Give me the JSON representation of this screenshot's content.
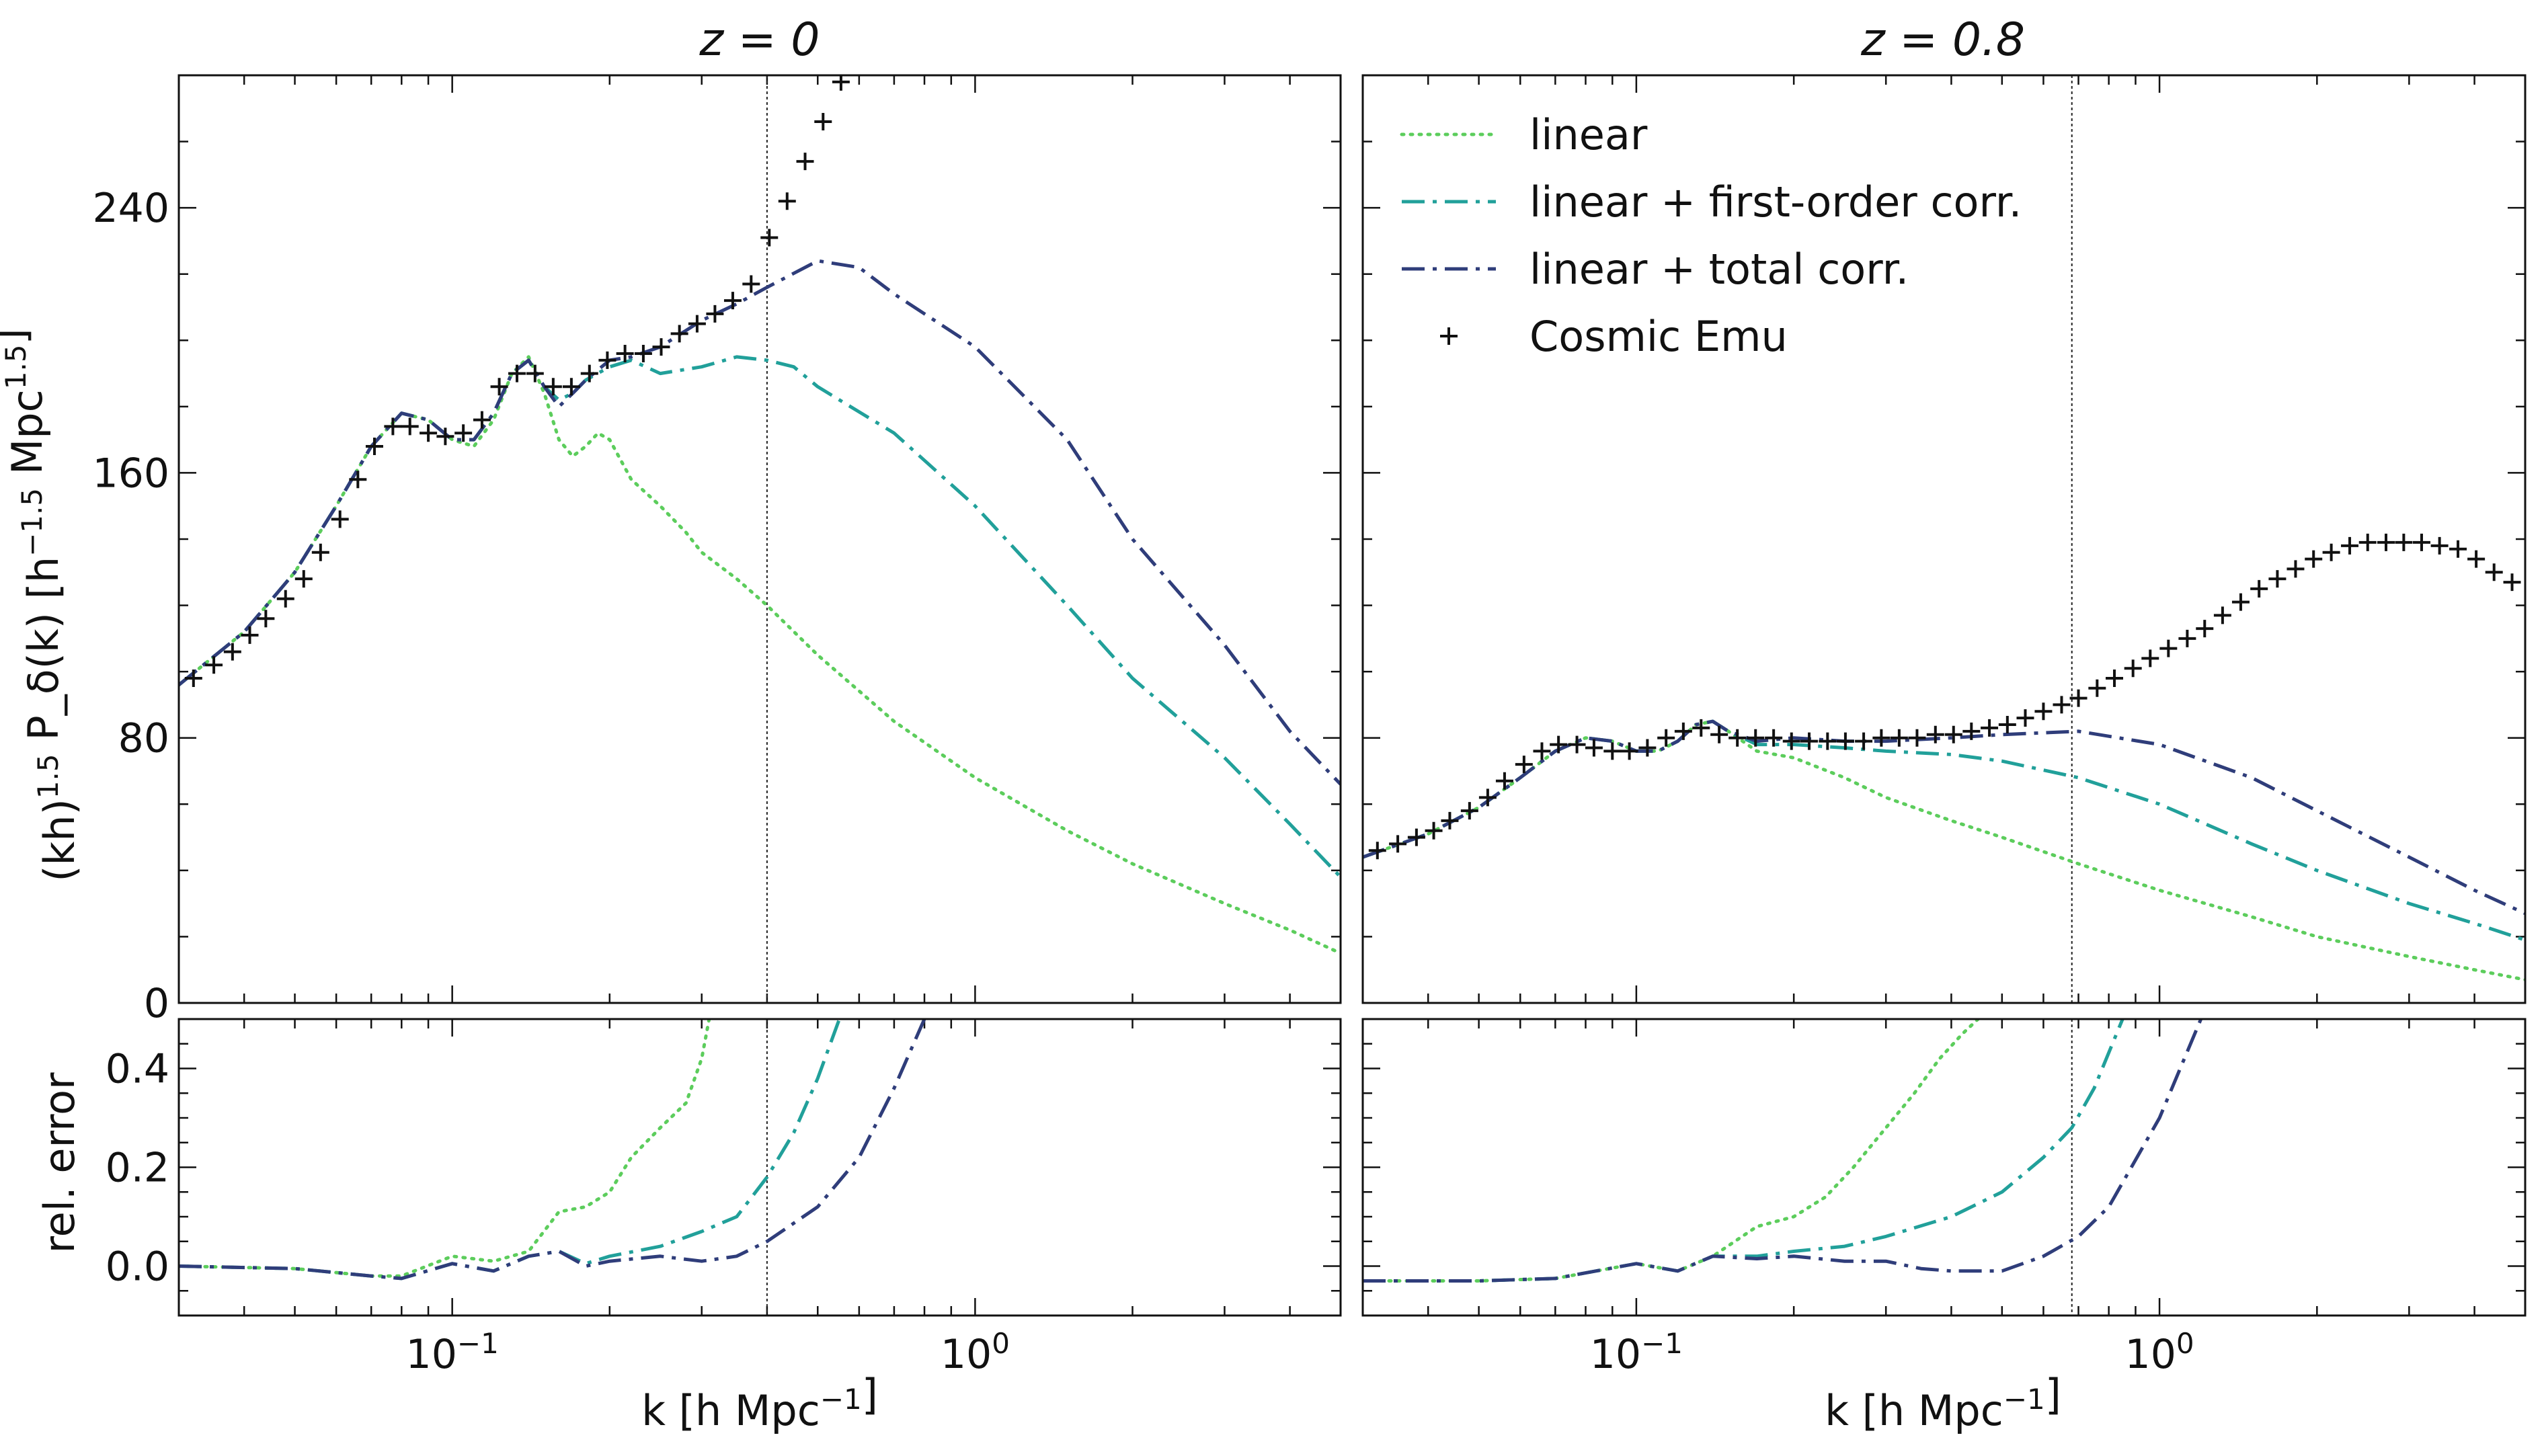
{
  "figure": {
    "ylabel_top": "(kh)^1.5 P_δ(k) [h^−1.5 Mpc^1.5]",
    "ylabel_bottom": "rel. error",
    "xlabel": "k [h Mpc^−1]",
    "legend_position": "top-left of right panel"
  },
  "chart_data": [
    {
      "type": "line",
      "title": "z = 0",
      "xscale": "log",
      "xlim": [
        0.03,
        5.0
      ],
      "ylim": [
        0,
        280
      ],
      "yticks": [
        0,
        80,
        160,
        240
      ],
      "xticks": [
        0.1,
        1.0
      ],
      "xtick_labels": [
        "10^−1",
        "10^0"
      ],
      "vline_x": 0.4,
      "series": [
        {
          "name": "linear",
          "style": "dotted",
          "color": "#5ccd5c",
          "x": [
            0.03,
            0.04,
            0.05,
            0.06,
            0.07,
            0.08,
            0.09,
            0.1,
            0.11,
            0.12,
            0.13,
            0.14,
            0.15,
            0.16,
            0.17,
            0.18,
            0.19,
            0.2,
            0.22,
            0.25,
            0.28,
            0.3,
            0.35,
            0.4,
            0.5,
            0.7,
            1.0,
            1.5,
            2.0,
            3.0,
            4.0,
            5.0
          ],
          "y": [
            96,
            112,
            130,
            150,
            168,
            178,
            176,
            170,
            168,
            176,
            190,
            195,
            184,
            170,
            165,
            168,
            172,
            170,
            158,
            150,
            142,
            136,
            128,
            120,
            105,
            85,
            68,
            52,
            42,
            30,
            22,
            15
          ]
        },
        {
          "name": "linear + first-order corr.",
          "style": "dashdot",
          "color": "#21a09a",
          "x": [
            0.03,
            0.04,
            0.05,
            0.06,
            0.07,
            0.08,
            0.09,
            0.1,
            0.11,
            0.12,
            0.13,
            0.14,
            0.15,
            0.16,
            0.17,
            0.18,
            0.2,
            0.22,
            0.25,
            0.3,
            0.35,
            0.4,
            0.45,
            0.5,
            0.7,
            1.0,
            1.5,
            2.0,
            3.0,
            4.0,
            5.0
          ],
          "y": [
            96,
            112,
            130,
            150,
            168,
            178,
            176,
            170,
            170,
            178,
            190,
            194,
            186,
            182,
            184,
            188,
            192,
            194,
            190,
            192,
            195,
            194,
            192,
            186,
            172,
            150,
            120,
            98,
            74,
            54,
            38
          ]
        },
        {
          "name": "linear + total corr.",
          "style": "dashdot",
          "color": "#2f3d7a",
          "x": [
            0.03,
            0.04,
            0.05,
            0.06,
            0.07,
            0.08,
            0.09,
            0.1,
            0.11,
            0.12,
            0.13,
            0.14,
            0.15,
            0.16,
            0.17,
            0.18,
            0.2,
            0.22,
            0.25,
            0.3,
            0.35,
            0.4,
            0.5,
            0.6,
            0.7,
            1.0,
            1.5,
            2.0,
            3.0,
            4.0,
            5.0
          ],
          "y": [
            96,
            112,
            130,
            150,
            168,
            178,
            176,
            170,
            170,
            178,
            190,
            194,
            186,
            180,
            184,
            188,
            194,
            195,
            198,
            206,
            211,
            216,
            224,
            222,
            214,
            198,
            170,
            140,
            108,
            82,
            66
          ]
        },
        {
          "name": "Cosmic Emu",
          "style": "plus",
          "color": "#111111",
          "x": [
            0.032,
            0.035,
            0.038,
            0.041,
            0.044,
            0.048,
            0.052,
            0.056,
            0.061,
            0.066,
            0.071,
            0.077,
            0.083,
            0.09,
            0.097,
            0.105,
            0.114,
            0.123,
            0.133,
            0.144,
            0.156,
            0.169,
            0.183,
            0.198,
            0.214,
            0.232,
            0.251,
            0.272,
            0.294,
            0.318,
            0.344,
            0.373,
            0.404,
            0.437,
            0.473,
            0.512,
            0.554,
            0.6
          ],
          "y": [
            98,
            102,
            106,
            111,
            116,
            122,
            128,
            136,
            146,
            158,
            168,
            174,
            174,
            172,
            171,
            172,
            176,
            186,
            190,
            190,
            186,
            186,
            190,
            194,
            196,
            196,
            198,
            202,
            205,
            208,
            212,
            217,
            231,
            242,
            254,
            266,
            278,
            288
          ]
        }
      ]
    },
    {
      "type": "line",
      "title": "z = 0.8",
      "xscale": "log",
      "xlim": [
        0.03,
        5.0
      ],
      "ylim": [
        0,
        280
      ],
      "yticks": [
        0,
        80,
        160,
        240
      ],
      "xticks": [
        0.1,
        1.0
      ],
      "xtick_labels": [
        "10^−1",
        "10^0"
      ],
      "vline_x": 0.68,
      "series": [
        {
          "name": "linear",
          "style": "dotted",
          "color": "#5ccd5c",
          "x": [
            0.03,
            0.04,
            0.05,
            0.06,
            0.07,
            0.08,
            0.09,
            0.1,
            0.11,
            0.12,
            0.13,
            0.14,
            0.15,
            0.17,
            0.2,
            0.25,
            0.3,
            0.4,
            0.5,
            0.7,
            1.0,
            1.5,
            2.0,
            3.0,
            4.0,
            5.0
          ],
          "y": [
            44,
            51,
            59,
            68,
            76,
            80,
            79,
            76,
            76,
            79,
            84,
            85,
            82,
            76,
            74,
            68,
            62,
            55,
            50,
            42,
            34,
            26,
            20,
            14,
            10,
            7
          ]
        },
        {
          "name": "linear + first-order corr.",
          "style": "dashdot",
          "color": "#21a09a",
          "x": [
            0.03,
            0.04,
            0.05,
            0.06,
            0.07,
            0.08,
            0.09,
            0.1,
            0.11,
            0.12,
            0.13,
            0.14,
            0.15,
            0.17,
            0.2,
            0.25,
            0.3,
            0.4,
            0.5,
            0.7,
            1.0,
            1.5,
            2.0,
            3.0,
            4.0,
            5.0
          ],
          "y": [
            44,
            51,
            59,
            68,
            76,
            80,
            79,
            76,
            76,
            79,
            84,
            85,
            82,
            78,
            78,
            77,
            76,
            75,
            73,
            68,
            60,
            48,
            40,
            30,
            24,
            19
          ]
        },
        {
          "name": "linear + total corr.",
          "style": "dashdot",
          "color": "#2f3d7a",
          "x": [
            0.03,
            0.04,
            0.05,
            0.06,
            0.07,
            0.08,
            0.09,
            0.1,
            0.11,
            0.12,
            0.13,
            0.14,
            0.15,
            0.17,
            0.2,
            0.25,
            0.3,
            0.4,
            0.5,
            0.7,
            1.0,
            1.5,
            2.0,
            3.0,
            4.0,
            5.0
          ],
          "y": [
            44,
            51,
            59,
            68,
            76,
            80,
            79,
            76,
            76,
            79,
            84,
            85,
            82,
            79,
            80,
            79,
            79,
            80,
            81,
            82,
            78,
            68,
            58,
            44,
            34,
            27
          ]
        },
        {
          "name": "Cosmic Emu",
          "style": "plus",
          "color": "#111111",
          "x": [
            0.032,
            0.035,
            0.038,
            0.041,
            0.044,
            0.048,
            0.052,
            0.056,
            0.061,
            0.066,
            0.071,
            0.077,
            0.083,
            0.09,
            0.097,
            0.105,
            0.114,
            0.123,
            0.133,
            0.144,
            0.156,
            0.169,
            0.183,
            0.198,
            0.214,
            0.232,
            0.251,
            0.272,
            0.294,
            0.318,
            0.344,
            0.373,
            0.404,
            0.437,
            0.473,
            0.512,
            0.554,
            0.6,
            0.65,
            0.7,
            0.76,
            0.82,
            0.89,
            0.96,
            1.04,
            1.13,
            1.22,
            1.32,
            1.43,
            1.55,
            1.68,
            1.82,
            1.97,
            2.13,
            2.31,
            2.5,
            2.71,
            2.93,
            3.17,
            3.43,
            3.72,
            4.03,
            4.36,
            4.72
          ],
          "y": [
            46,
            48,
            50,
            52,
            55,
            58,
            62,
            67,
            72,
            76,
            78,
            78,
            77,
            76,
            76,
            77,
            80,
            82,
            83,
            81,
            80,
            80,
            80,
            79,
            79,
            79,
            79,
            79,
            80,
            80,
            80,
            81,
            81,
            82,
            83,
            84,
            86,
            88,
            90,
            92,
            95,
            98,
            101,
            104,
            107,
            110,
            113,
            117,
            121,
            125,
            128,
            131,
            134,
            136,
            138,
            139,
            139,
            139,
            139,
            138,
            137,
            134,
            130,
            127
          ]
        }
      ]
    },
    {
      "type": "line",
      "title": "",
      "ylabel": "rel. error",
      "xscale": "log",
      "xlim": [
        0.03,
        5.0
      ],
      "ylim": [
        -0.1,
        0.5
      ],
      "yticks": [
        0.0,
        0.2,
        0.4
      ],
      "ytick_labels": [
        "0.0",
        "0.2",
        "0.4"
      ],
      "xticks": [
        0.1,
        1.0
      ],
      "xtick_labels": [
        "10^−1",
        "10^0"
      ],
      "vline_x": 0.4,
      "series": [
        {
          "name": "linear",
          "style": "dotted",
          "color": "#5ccd5c",
          "x": [
            0.03,
            0.05,
            0.07,
            0.08,
            0.1,
            0.12,
            0.14,
            0.16,
            0.18,
            0.2,
            0.22,
            0.25,
            0.28,
            0.3,
            0.31
          ],
          "y": [
            0,
            -0.005,
            -0.02,
            -0.02,
            0.02,
            0.01,
            0.03,
            0.11,
            0.12,
            0.15,
            0.22,
            0.28,
            0.33,
            0.42,
            0.5
          ]
        },
        {
          "name": "linear + first-order corr.",
          "style": "dashdot",
          "color": "#21a09a",
          "x": [
            0.03,
            0.05,
            0.07,
            0.08,
            0.1,
            0.12,
            0.14,
            0.16,
            0.18,
            0.2,
            0.25,
            0.3,
            0.35,
            0.4,
            0.45,
            0.5,
            0.55
          ],
          "y": [
            0,
            -0.005,
            -0.02,
            -0.025,
            0.005,
            -0.01,
            0.02,
            0.03,
            0.005,
            0.02,
            0.04,
            0.07,
            0.1,
            0.18,
            0.27,
            0.38,
            0.5
          ]
        },
        {
          "name": "linear + total corr.",
          "style": "dashdot",
          "color": "#2f3d7a",
          "x": [
            0.03,
            0.05,
            0.07,
            0.08,
            0.1,
            0.12,
            0.14,
            0.16,
            0.18,
            0.2,
            0.25,
            0.3,
            0.35,
            0.4,
            0.5,
            0.6,
            0.7,
            0.8
          ],
          "y": [
            0,
            -0.005,
            -0.02,
            -0.025,
            0.005,
            -0.01,
            0.02,
            0.03,
            0.0,
            0.01,
            0.02,
            0.01,
            0.02,
            0.05,
            0.12,
            0.22,
            0.36,
            0.5
          ]
        }
      ]
    },
    {
      "type": "line",
      "title": "",
      "xscale": "log",
      "xlim": [
        0.03,
        5.0
      ],
      "ylim": [
        -0.1,
        0.5
      ],
      "yticks": [
        0.0,
        0.2,
        0.4
      ],
      "xticks": [
        0.1,
        1.0
      ],
      "xtick_labels": [
        "10^−1",
        "10^0"
      ],
      "vline_x": 0.68,
      "series": [
        {
          "name": "linear",
          "style": "dotted",
          "color": "#5ccd5c",
          "x": [
            0.03,
            0.05,
            0.07,
            0.1,
            0.12,
            0.14,
            0.17,
            0.2,
            0.23,
            0.26,
            0.3,
            0.34,
            0.38,
            0.42,
            0.45
          ],
          "y": [
            -0.03,
            -0.03,
            -0.025,
            0.005,
            -0.01,
            0.02,
            0.08,
            0.1,
            0.14,
            0.2,
            0.28,
            0.35,
            0.42,
            0.47,
            0.5
          ]
        },
        {
          "name": "linear + first-order corr.",
          "style": "dashdot",
          "color": "#21a09a",
          "x": [
            0.03,
            0.05,
            0.07,
            0.1,
            0.12,
            0.14,
            0.17,
            0.2,
            0.25,
            0.3,
            0.4,
            0.5,
            0.6,
            0.68,
            0.75,
            0.85
          ],
          "y": [
            -0.03,
            -0.03,
            -0.025,
            0.005,
            -0.01,
            0.02,
            0.02,
            0.03,
            0.04,
            0.06,
            0.1,
            0.15,
            0.22,
            0.28,
            0.36,
            0.5
          ]
        },
        {
          "name": "linear + total corr.",
          "style": "dashdot",
          "color": "#2f3d7a",
          "x": [
            0.03,
            0.05,
            0.07,
            0.1,
            0.12,
            0.14,
            0.17,
            0.2,
            0.25,
            0.3,
            0.35,
            0.4,
            0.5,
            0.6,
            0.7,
            0.8,
            1.0,
            1.2
          ],
          "y": [
            -0.03,
            -0.03,
            -0.025,
            0.005,
            -0.01,
            0.02,
            0.015,
            0.02,
            0.01,
            0.01,
            -0.005,
            -0.01,
            -0.01,
            0.02,
            0.06,
            0.12,
            0.3,
            0.5
          ]
        }
      ]
    }
  ]
}
